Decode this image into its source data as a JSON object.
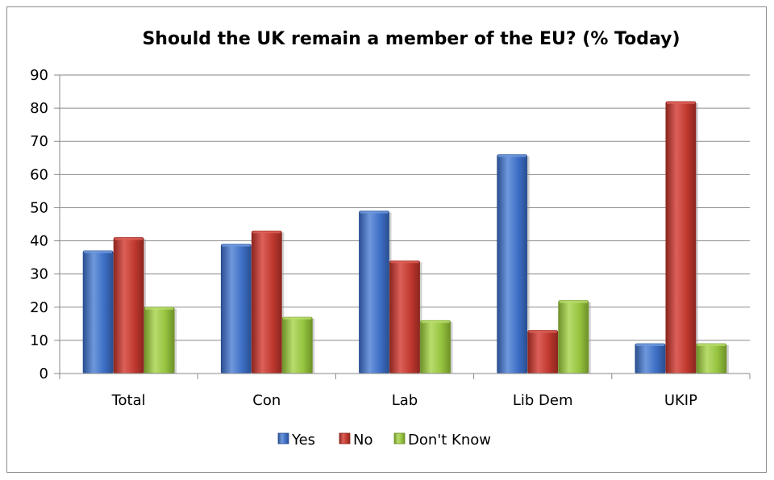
{
  "chart_data": {
    "type": "bar",
    "title": "Should the UK remain a member of the EU? (% Today)",
    "categories": [
      "Total",
      "Con",
      "Lab",
      "Lib Dem",
      "UKIP"
    ],
    "series": [
      {
        "name": "Yes",
        "values": [
          37,
          39,
          49,
          66,
          9
        ],
        "color": "#3d6fc6",
        "color_light": "#6f98dc",
        "color_dark": "#2a4f91"
      },
      {
        "name": "No",
        "values": [
          41,
          43,
          34,
          13,
          82
        ],
        "color": "#c0392f",
        "color_light": "#dc6059",
        "color_dark": "#8c261f"
      },
      {
        "name": "Don't Know",
        "values": [
          20,
          17,
          16,
          22,
          9
        ],
        "color": "#96c440",
        "color_light": "#b8dc6c",
        "color_dark": "#6e9228"
      }
    ],
    "y_ticks": [
      "0",
      "10",
      "20",
      "30",
      "40",
      "50",
      "60",
      "70",
      "80",
      "90"
    ],
    "ylim": [
      0,
      90
    ],
    "grid": true,
    "legend": "bottom"
  }
}
